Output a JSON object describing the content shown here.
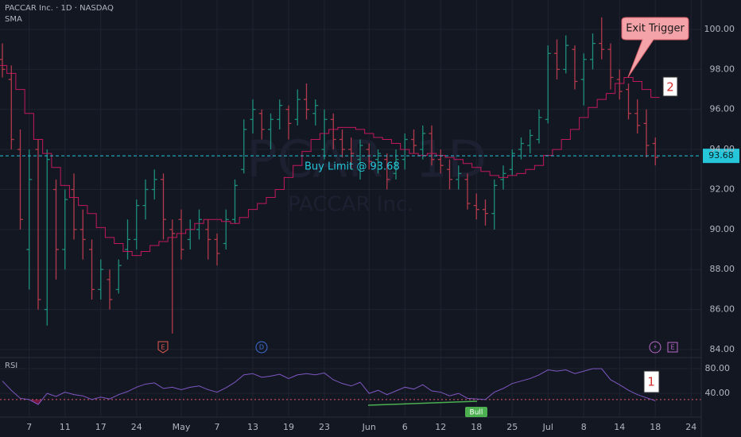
{
  "chart_data": [
    {
      "type": "ohlc",
      "title": "PACCAR Inc. · 1D · NASDAQ",
      "indicator_label": "SMA",
      "watermark": "PCAR, 1D",
      "watermark_subtitle": "PACCAR Inc.",
      "categories": [
        null,
        null,
        null,
        "7",
        null,
        null,
        null,
        "11",
        null,
        null,
        null,
        "17",
        null,
        null,
        null,
        "24",
        null,
        null,
        null,
        null,
        "May",
        null,
        null,
        null,
        "7",
        null,
        null,
        null,
        "13",
        null,
        null,
        null,
        "19",
        null,
        null,
        null,
        "23",
        null,
        null,
        null,
        null,
        "Jun",
        null,
        null,
        null,
        "6",
        null,
        null,
        null,
        "12",
        null,
        null,
        null,
        "18",
        null,
        null,
        null,
        "25",
        null,
        null,
        null,
        "Jul",
        null,
        null,
        null,
        "8",
        null,
        null,
        null,
        "14",
        null,
        null,
        null,
        "18",
        null,
        null,
        null,
        "24"
      ],
      "open": [
        98.5,
        97.5,
        94,
        89,
        94,
        86,
        92,
        89,
        92,
        90,
        89,
        87,
        87.5,
        87,
        89,
        89.5,
        91.2,
        92,
        92.5,
        90,
        90.5,
        89.5,
        90,
        90,
        89.5,
        89.3,
        90.5,
        93,
        95.5,
        95.8,
        95,
        95.5,
        96,
        95.5,
        96.5,
        95.8,
        94,
        95.5,
        94.5,
        94,
        93.5,
        94,
        93.5,
        93.5,
        92.8,
        93.5,
        94.5,
        94,
        94.8,
        93.5,
        93,
        92.5,
        92.5,
        91.2,
        91,
        90.8,
        92.5,
        93,
        94,
        94.2,
        94.5,
        95.5,
        98.8,
        98,
        99,
        97.5,
        98.5,
        99.3,
        99,
        97.5,
        97,
        95.8,
        95.3,
        94.3,
        null,
        null,
        null,
        null
      ],
      "high": [
        99.3,
        98.2,
        95,
        94,
        94.5,
        94,
        92.5,
        92,
        92.8,
        91,
        89.5,
        88.5,
        88,
        88.5,
        90.5,
        91.5,
        92.5,
        93,
        92.8,
        90.5,
        91,
        90.5,
        91,
        90.5,
        89.8,
        91,
        92.5,
        95.5,
        96.5,
        96,
        95.8,
        96.5,
        96.2,
        97,
        97.3,
        96.5,
        96,
        95.8,
        95,
        94.6,
        94.5,
        94.3,
        94,
        93.8,
        94,
        94.8,
        95,
        95.2,
        95.2,
        94,
        93.5,
        93.2,
        92.8,
        91.8,
        91.5,
        92.5,
        93.2,
        94,
        94.6,
        95,
        96,
        99.2,
        99.5,
        99.7,
        99.2,
        98.8,
        99.8,
        100.6,
        99.3,
        98,
        97.3,
        96.5,
        96,
        94.6,
        null,
        null,
        null,
        null
      ],
      "low": [
        97.6,
        94,
        90,
        87,
        86,
        85.2,
        87.5,
        88,
        89.5,
        88.5,
        86.5,
        86.5,
        86,
        86.8,
        88.5,
        89,
        90.5,
        91.5,
        89.5,
        84.8,
        88.5,
        89,
        89.5,
        88.5,
        88.2,
        89,
        90.3,
        92.8,
        94.8,
        94.5,
        94,
        95,
        94.5,
        95.2,
        95.5,
        95.2,
        93.5,
        94,
        93.6,
        93,
        92.5,
        93,
        92.8,
        92,
        92.5,
        93,
        93.8,
        93.5,
        93.2,
        92.8,
        92,
        92,
        91,
        90.5,
        90.2,
        90,
        92,
        92.7,
        93.5,
        93.8,
        94.3,
        95.3,
        97.5,
        97.8,
        97,
        96.2,
        98,
        98.5,
        97,
        96.5,
        95.5,
        94.8,
        93.6,
        93.2,
        null,
        null,
        null,
        null
      ],
      "close": [
        98,
        94.5,
        90.5,
        92.5,
        86.5,
        93.5,
        89,
        91.5,
        90,
        89.5,
        87,
        88,
        86.5,
        88.2,
        89.5,
        91.2,
        92,
        92.5,
        90.5,
        89.8,
        89,
        90,
        90.5,
        89.5,
        88.8,
        90.5,
        92.2,
        95,
        96,
        95,
        95.5,
        96.2,
        95.3,
        96.5,
        96,
        96.2,
        95.5,
        94.5,
        94,
        93.8,
        94.2,
        93.4,
        93.8,
        92.5,
        93.5,
        94.5,
        94.2,
        94.8,
        93.5,
        93.2,
        92.5,
        92.8,
        91.3,
        91,
        90.8,
        92.2,
        92.8,
        93.8,
        94.3,
        94.7,
        95.6,
        98.8,
        98,
        99.2,
        97.4,
        98.5,
        99.3,
        99,
        97.6,
        96.9,
        95.8,
        95.2,
        94.2,
        93.6,
        null,
        null,
        null,
        null
      ],
      "up_color": "#1e8f7e",
      "down_color": "#b33a4c",
      "sma": {
        "color": "#c2185b",
        "values": [
          98.2,
          97.8,
          97,
          95.8,
          94.5,
          93.8,
          93.1,
          92.2,
          91.6,
          91.2,
          90.8,
          90.1,
          89.6,
          89.3,
          88.9,
          88.7,
          88.9,
          89.2,
          89.4,
          89.6,
          89.8,
          90,
          90.3,
          90.5,
          90.5,
          90.4,
          90.3,
          90.6,
          91,
          91.3,
          91.6,
          92,
          92.6,
          93.2,
          93.9,
          94.5,
          94.8,
          95,
          95.1,
          95.1,
          95,
          94.8,
          94.6,
          94.5,
          94.3,
          94,
          93.8,
          93.7,
          93.8,
          93.7,
          93.6,
          93.5,
          93.3,
          93.1,
          92.9,
          92.7,
          92.6,
          92.7,
          92.8,
          93,
          93.2,
          93.7,
          94,
          94.5,
          95,
          95.6,
          96.1,
          96.5,
          96.8,
          97.3,
          97.6,
          97.4,
          97,
          96.6,
          null,
          null,
          null,
          null
        ]
      },
      "ylim": [
        83.6,
        101.47
      ],
      "yticks": [
        {
          "value": 84,
          "label": "84.00"
        },
        {
          "value": 86,
          "label": "86.00"
        },
        {
          "value": 88,
          "label": "88.00"
        },
        {
          "value": 90,
          "label": "90.00"
        },
        {
          "value": 92,
          "label": "92.00"
        },
        {
          "value": 94,
          "label": "94.00"
        },
        {
          "value": 96,
          "label": "96.00"
        },
        {
          "value": 98,
          "label": "98.00"
        },
        {
          "value": 100,
          "label": "100.00"
        }
      ],
      "grid": true,
      "buy_limit": {
        "value": 93.68,
        "label": "Buy Limit @ 93.68",
        "color": "#26c6da"
      },
      "callout": "Exit Trigger",
      "box_label": "2",
      "events": [
        "E",
        "D",
        "⚡",
        "E"
      ]
    },
    {
      "type": "line",
      "title": "RSI",
      "color": "#7e57c2",
      "values": [
        60,
        45,
        32,
        30,
        22,
        40,
        35,
        42,
        38,
        36,
        30,
        34,
        31,
        38,
        43,
        50,
        55,
        57,
        48,
        50,
        46,
        50,
        52,
        46,
        42,
        49,
        58,
        70,
        72,
        66,
        68,
        71,
        64,
        70,
        72,
        70,
        73,
        62,
        56,
        52,
        58,
        40,
        45,
        38,
        44,
        50,
        47,
        54,
        44,
        42,
        36,
        40,
        32,
        31,
        30,
        42,
        48,
        56,
        60,
        64,
        70,
        78,
        76,
        78,
        72,
        76,
        80,
        80,
        62,
        54,
        45,
        38,
        33,
        28,
        null,
        null,
        null,
        null
      ],
      "ylim": [
        8,
        98
      ],
      "yticks": [
        {
          "value": 80,
          "label": "80.00"
        },
        {
          "value": 40,
          "label": "40.00"
        }
      ],
      "reference_line": 30,
      "box_label": "1",
      "divergence_label": "Bull"
    }
  ]
}
